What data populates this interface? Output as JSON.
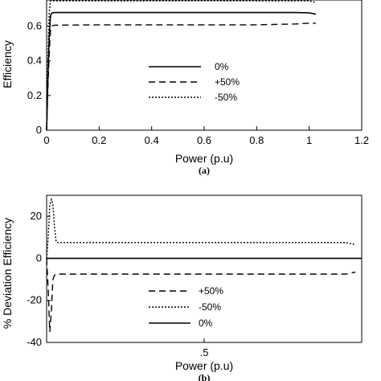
{
  "chart_data": [
    {
      "type": "line",
      "panel_label": "(a)",
      "xlabel": "Power (p.u)",
      "ylabel": "Efficiency",
      "xlim": [
        0,
        1.2
      ],
      "ylim": [
        0,
        0.75
      ],
      "x_ticks": [
        0,
        0.2,
        0.4,
        0.6,
        0.8,
        1,
        1.2
      ],
      "x_tick_labels": [
        "0",
        "0.2",
        "0.4",
        "0.6",
        "0.8",
        "1",
        "1.2"
      ],
      "y_ticks": [
        0,
        0.2,
        0.4,
        0.6
      ],
      "y_tick_labels": [
        "0",
        "0.2",
        "0.4",
        "0.6"
      ],
      "legend_position": "center-right",
      "series": [
        {
          "name": "0%",
          "style": "solid",
          "x": [
            0,
            0.005,
            0.01,
            0.015,
            0.02,
            0.03,
            0.2,
            0.5,
            0.8,
            0.95,
            1.0,
            1.025
          ],
          "y": [
            0,
            0.3,
            0.55,
            0.66,
            0.675,
            0.678,
            0.678,
            0.678,
            0.678,
            0.678,
            0.676,
            0.668
          ]
        },
        {
          "name": "+50%",
          "style": "dashed",
          "x": [
            0,
            0.005,
            0.01,
            0.015,
            0.02,
            0.03,
            0.2,
            0.5,
            0.8,
            0.95,
            1.0,
            1.025
          ],
          "y": [
            0,
            0.25,
            0.45,
            0.58,
            0.6,
            0.605,
            0.607,
            0.607,
            0.607,
            0.612,
            0.616,
            0.616
          ]
        },
        {
          "name": "-50%",
          "style": "dotted",
          "x": [
            0,
            0.005,
            0.01,
            0.015,
            0.02,
            0.03,
            0.2,
            0.5,
            0.8,
            0.95,
            1.0,
            1.025
          ],
          "y": [
            0,
            0.4,
            0.68,
            0.75,
            0.755,
            0.755,
            0.755,
            0.755,
            0.755,
            0.754,
            0.75,
            0.735
          ]
        }
      ]
    },
    {
      "type": "line",
      "panel_label": "(b)",
      "xlabel": "Power (p.u)",
      "ylabel": "% Deviation Efficiency",
      "xlim": [
        0,
        1.0
      ],
      "ylim": [
        -40,
        30
      ],
      "x_ticks": [
        0.5
      ],
      "x_tick_labels": [
        ".5"
      ],
      "y_ticks": [
        -40,
        -20,
        0,
        20
      ],
      "y_tick_labels": [
        "-40",
        "-20",
        "0",
        "20"
      ],
      "legend_position": "bottom-center",
      "series": [
        {
          "name": "+50%",
          "style": "dashed",
          "x": [
            0,
            0.005,
            0.01,
            0.015,
            0.02,
            0.025,
            0.03,
            0.2,
            0.5,
            0.8,
            0.95,
            0.98
          ],
          "y": [
            0,
            -15,
            -35,
            -25,
            -10,
            -8,
            -7.5,
            -7.5,
            -7.5,
            -7.5,
            -7.5,
            -6.5
          ]
        },
        {
          "name": "-50%",
          "style": "dotted",
          "x": [
            0,
            0.005,
            0.01,
            0.015,
            0.02,
            0.025,
            0.03,
            0.035,
            0.2,
            0.5,
            0.8,
            0.95,
            0.98
          ],
          "y": [
            0,
            10,
            25,
            28,
            26,
            15,
            8,
            7.5,
            7.5,
            7.5,
            7.5,
            7.5,
            6.5
          ]
        },
        {
          "name": "0%",
          "style": "solid",
          "x": [
            0,
            1.0
          ],
          "y": [
            0,
            0
          ]
        }
      ]
    }
  ]
}
